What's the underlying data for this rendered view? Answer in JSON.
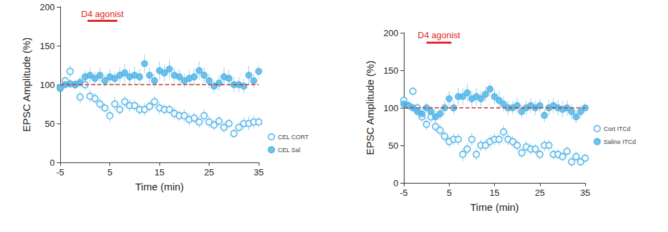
{
  "chart_data": [
    {
      "type": "scatter",
      "x_label": "Time (min)",
      "y_label": "EPSC Amplitude (%)",
      "xlim": [
        -5,
        35
      ],
      "xticks": [
        -5,
        5,
        15,
        25,
        35
      ],
      "ylim": [
        0,
        200
      ],
      "yticks": [
        0,
        50,
        100,
        150,
        200
      ],
      "grid": false,
      "legend": "right",
      "reference_y": 100,
      "annotation": {
        "text": "D4 agonist",
        "x": [
          0.5,
          6.5
        ],
        "y": 182,
        "color": "#e3262b"
      },
      "x": [
        -5,
        -4,
        -3,
        -2,
        -1,
        0,
        1,
        2,
        3,
        4,
        5,
        6,
        7,
        8,
        9,
        10,
        11,
        12,
        13,
        14,
        15,
        16,
        17,
        18,
        19,
        20,
        21,
        22,
        23,
        24,
        25,
        26,
        27,
        28,
        29,
        30,
        31,
        32,
        33,
        34,
        35
      ],
      "series": [
        {
          "name": "CEL CORT",
          "color": "#4db3e6",
          "marker": "open_circle",
          "values": [
            96,
            105,
            117,
            100,
            84,
            100,
            85,
            82,
            75,
            70,
            60,
            75,
            68,
            78,
            73,
            73,
            68,
            68,
            72,
            78,
            70,
            68,
            68,
            63,
            60,
            60,
            55,
            57,
            52,
            60,
            52,
            48,
            53,
            45,
            50,
            37,
            45,
            50,
            50,
            52,
            52
          ],
          "errors": [
            4,
            5,
            8,
            6,
            8,
            7,
            8,
            7,
            8,
            6,
            8,
            9,
            7,
            8,
            8,
            7,
            7,
            8,
            7,
            8,
            8,
            7,
            6,
            8,
            7,
            8,
            8,
            7,
            8,
            8,
            8,
            7,
            8,
            7,
            6,
            6,
            7,
            8,
            9,
            9,
            8
          ]
        },
        {
          "name": "CEL Sal",
          "color": "#4db3e6",
          "marker": "circle",
          "values": [
            95,
            100,
            101,
            100,
            103,
            110,
            112,
            108,
            112,
            105,
            110,
            108,
            112,
            115,
            110,
            112,
            110,
            127,
            112,
            105,
            118,
            115,
            120,
            112,
            110,
            105,
            108,
            110,
            118,
            112,
            105,
            98,
            102,
            110,
            108,
            100,
            100,
            98,
            112,
            105,
            117
          ],
          "errors": [
            4,
            5,
            6,
            5,
            7,
            8,
            10,
            9,
            10,
            8,
            10,
            9,
            10,
            12,
            10,
            11,
            10,
            12,
            10,
            9,
            12,
            11,
            12,
            10,
            10,
            9,
            10,
            11,
            12,
            10,
            9,
            8,
            10,
            12,
            11,
            10,
            10,
            9,
            12,
            10,
            12
          ]
        }
      ]
    },
    {
      "type": "scatter",
      "x_label": "Time (min)",
      "y_label": "EPSC Amplitude (%)",
      "xlim": [
        -5,
        35
      ],
      "xticks": [
        -5,
        5,
        15,
        25,
        35
      ],
      "ylim": [
        0,
        200
      ],
      "yticks": [
        0,
        50,
        100,
        150,
        200
      ],
      "grid": false,
      "legend": "right",
      "reference_y": 100,
      "annotation": {
        "text": "D4 agonist",
        "x": [
          0,
          5.5
        ],
        "y": 187,
        "color": "#e3262b"
      },
      "x": [
        -5,
        -4,
        -3,
        -2,
        -1,
        0,
        1,
        2,
        3,
        4,
        5,
        6,
        7,
        8,
        9,
        10,
        11,
        12,
        13,
        14,
        15,
        16,
        17,
        18,
        19,
        20,
        21,
        22,
        23,
        24,
        25,
        26,
        27,
        28,
        29,
        30,
        31,
        32,
        33,
        34,
        35
      ],
      "series": [
        {
          "name": "Cort ITCd",
          "color": "#4db3e6",
          "marker": "open_circle",
          "values": [
            110,
            103,
            122,
            100,
            88,
            78,
            88,
            75,
            70,
            62,
            55,
            58,
            58,
            38,
            45,
            58,
            38,
            50,
            50,
            55,
            58,
            58,
            68,
            58,
            55,
            50,
            40,
            48,
            45,
            45,
            38,
            50,
            50,
            38,
            38,
            35,
            42,
            28,
            35,
            28,
            33
          ],
          "errors": [
            5,
            5,
            6,
            6,
            7,
            8,
            8,
            7,
            8,
            7,
            8,
            8,
            8,
            9,
            8,
            9,
            8,
            8,
            8,
            9,
            9,
            8,
            9,
            8,
            8,
            8,
            7,
            8,
            8,
            7,
            7,
            8,
            8,
            7,
            7,
            6,
            7,
            7,
            7,
            6,
            6
          ]
        },
        {
          "name": "Saline ITCd",
          "color": "#4db3e6",
          "marker": "circle",
          "values": [
            105,
            103,
            100,
            95,
            92,
            100,
            95,
            88,
            92,
            100,
            112,
            100,
            115,
            115,
            120,
            112,
            115,
            112,
            118,
            125,
            115,
            110,
            105,
            100,
            100,
            103,
            95,
            100,
            103,
            100,
            103,
            90,
            100,
            103,
            100,
            98,
            100,
            95,
            88,
            95,
            100
          ],
          "errors": [
            5,
            5,
            6,
            6,
            6,
            7,
            8,
            8,
            8,
            9,
            10,
            9,
            12,
            11,
            12,
            10,
            12,
            10,
            10,
            8,
            10,
            12,
            10,
            10,
            9,
            10,
            9,
            10,
            10,
            10,
            9,
            9,
            10,
            10,
            10,
            11,
            10,
            10,
            9,
            9,
            8
          ]
        }
      ]
    }
  ]
}
